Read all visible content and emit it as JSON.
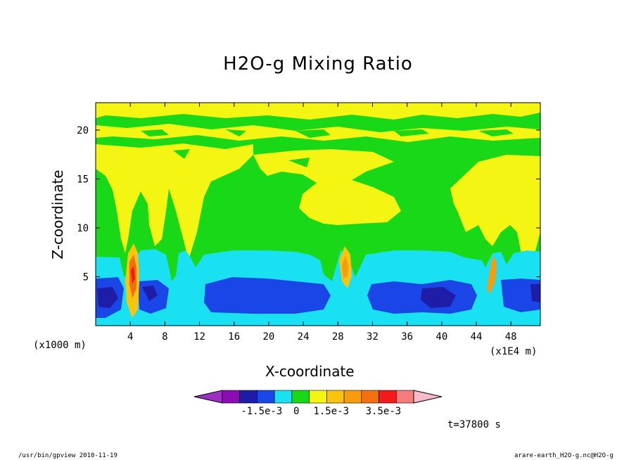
{
  "chart_data": {
    "type": "heatmap",
    "title": "H2O-g Mixing Ratio",
    "xlabel": "X-coordinate",
    "ylabel": "Z-coordinate",
    "x_unit_left": "(x1000 m)",
    "x_unit_right": "(x1E4 m)",
    "x_ticks": [
      "4",
      "8",
      "12",
      "16",
      "20",
      "24",
      "28",
      "32",
      "36",
      "40",
      "44",
      "48"
    ],
    "x_tick_values": [
      4,
      8,
      12,
      16,
      20,
      24,
      28,
      32,
      36,
      40,
      44,
      48
    ],
    "y_ticks": [
      "5",
      "10",
      "15",
      "20"
    ],
    "y_tick_values": [
      5,
      10,
      15,
      20
    ],
    "xlim": [
      0,
      51.4
    ],
    "ylim": [
      0,
      22.8
    ],
    "colorbar": {
      "colors": [
        "#9c2fc1",
        "#8a0cb3",
        "#1d1da8",
        "#1a46e8",
        "#19e1f1",
        "#18d818",
        "#f5f514",
        "#f8c40d",
        "#f79d0d",
        "#f36f0f",
        "#f41a1a",
        "#f57c7c",
        "#f8b9c8"
      ],
      "labels": [
        "-1.5e-3",
        "0",
        "1.5e-3",
        "3.5e-3"
      ]
    },
    "time_label": "t=37800 s",
    "grid": false
  },
  "footer": {
    "left": "/usr/bin/gpview  2010-11-19",
    "right": "arare-earth_H2O-g.nc@H2O-g"
  }
}
